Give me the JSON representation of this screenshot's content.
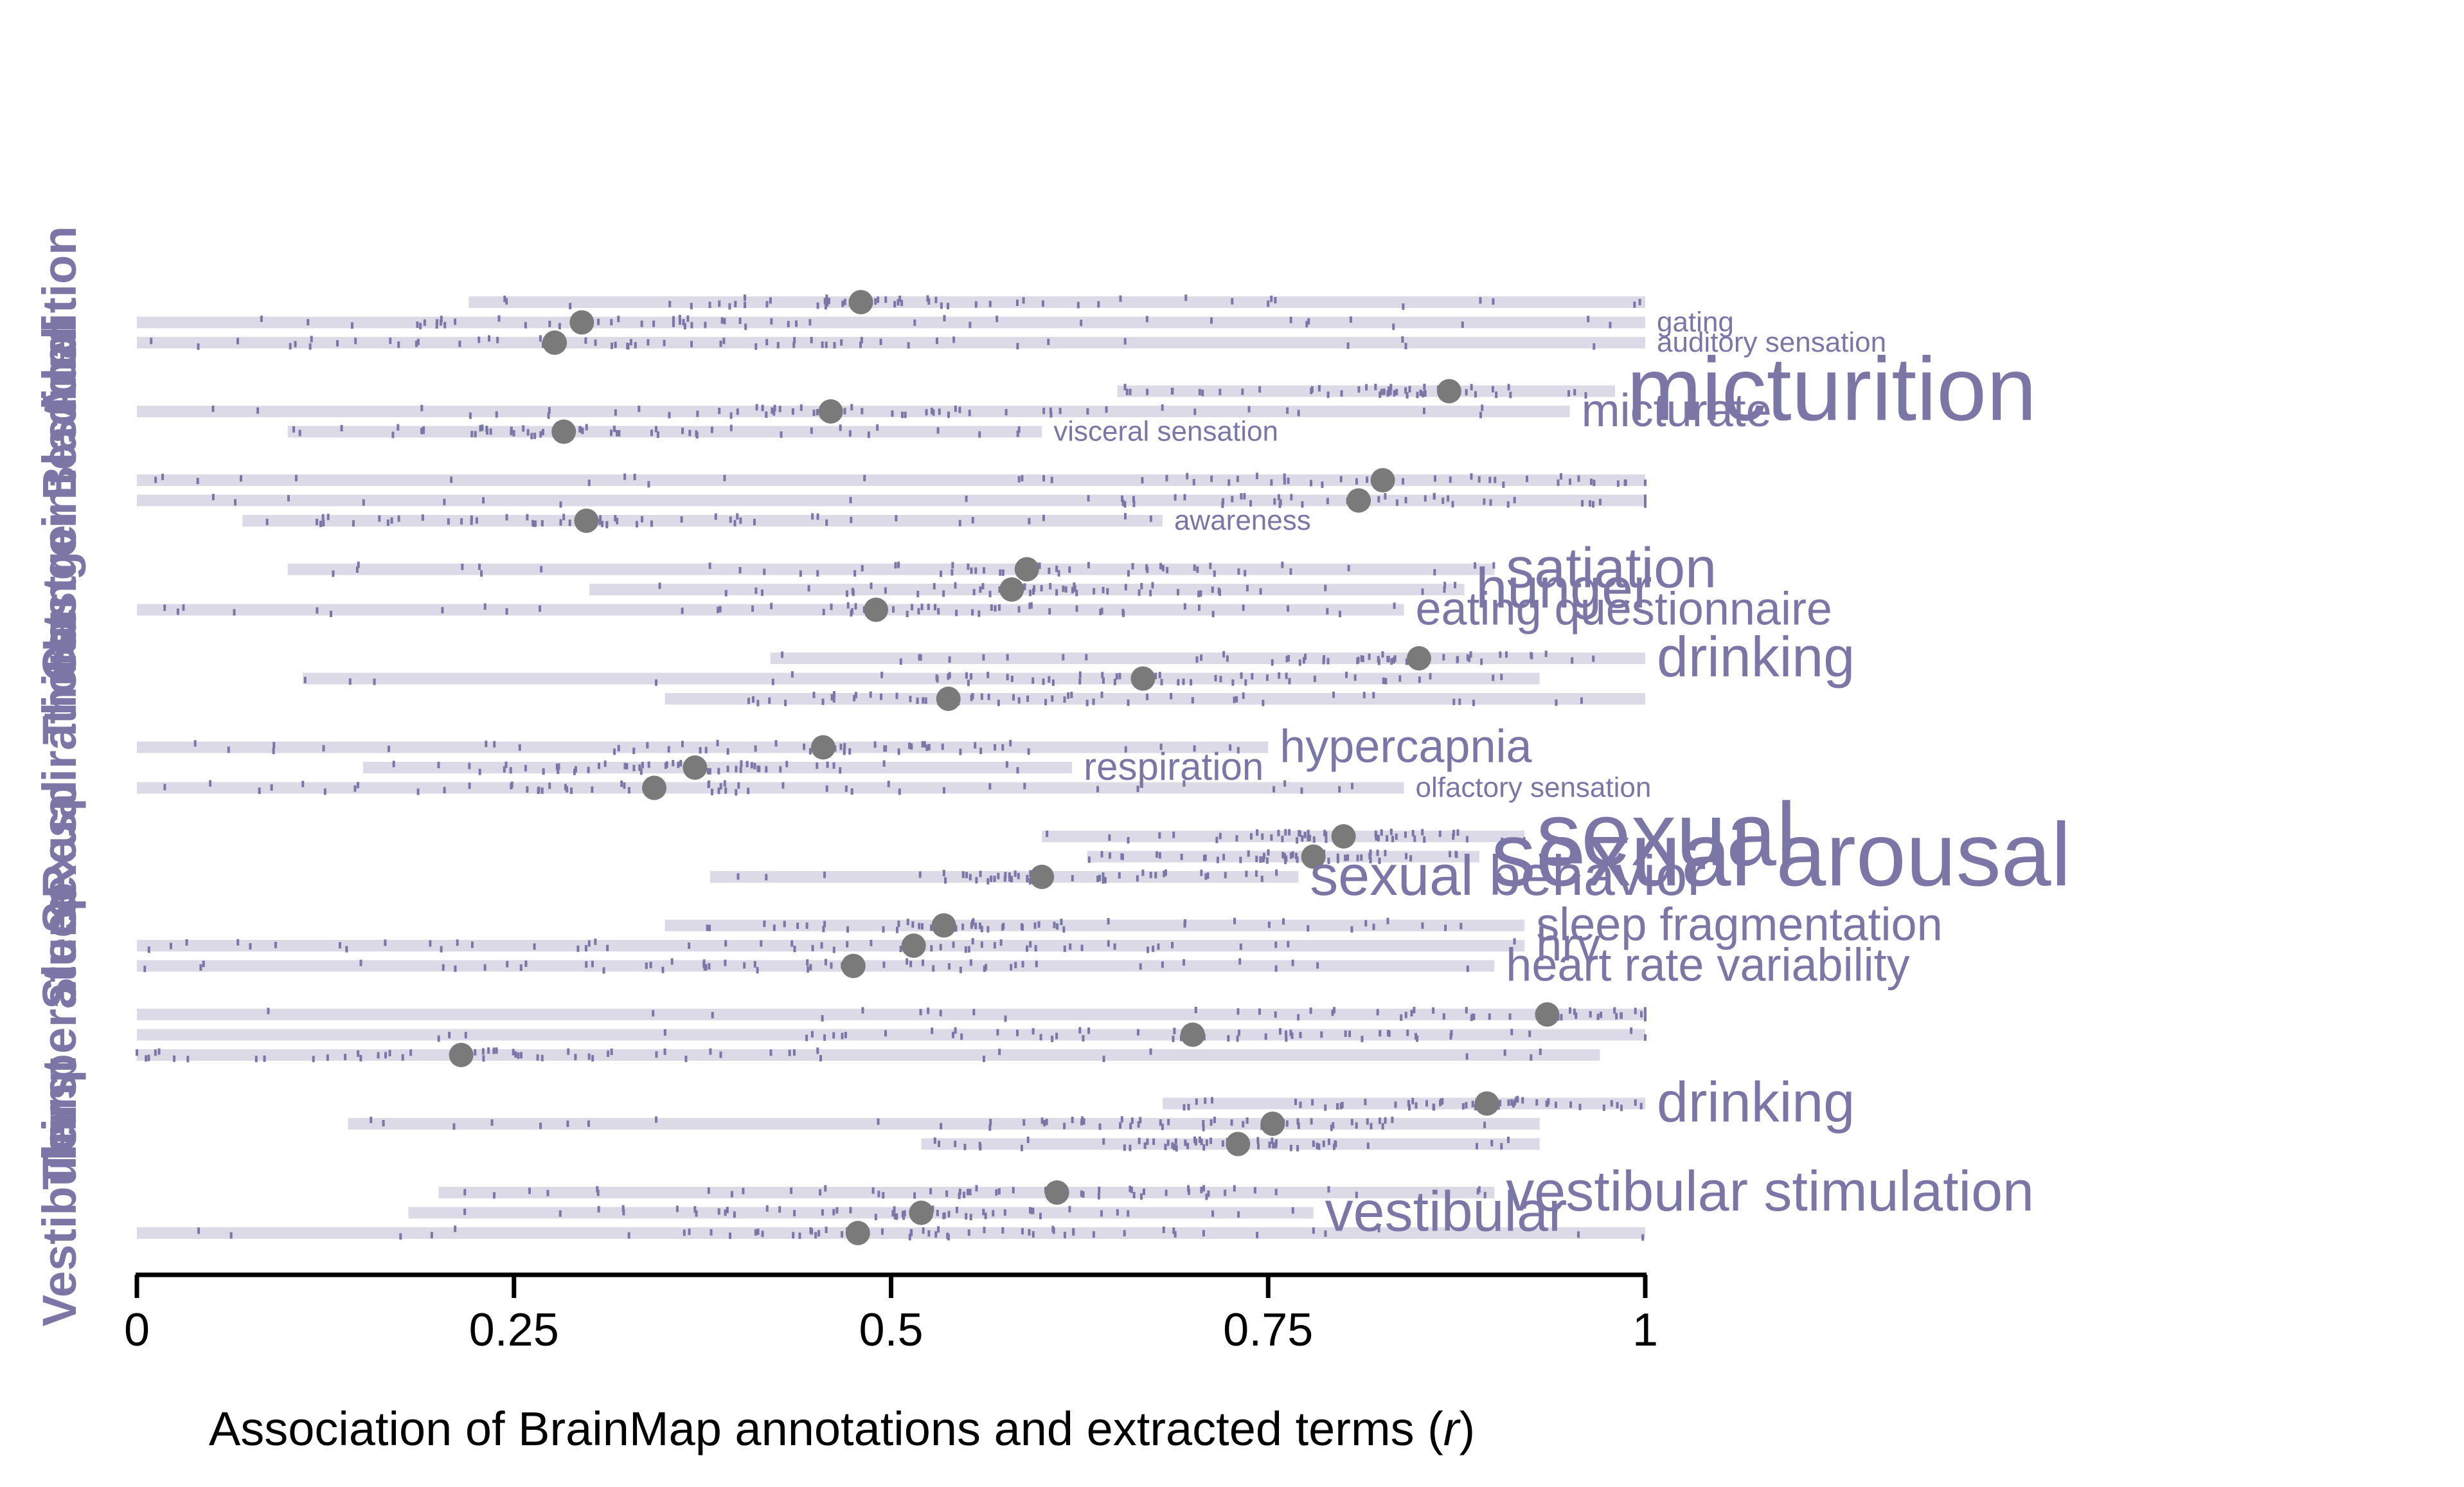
{
  "colors": {
    "accent": "#7B76A6",
    "dot": "#7A7A7A",
    "band": "#DCDAE6",
    "axis": "#000000"
  },
  "chart_data": {
    "type": "scatter",
    "title": "",
    "xlabel_prefix": "Association of BrainMap annotations and extracted terms (",
    "xlabel_var": "r",
    "xlabel_suffix": ")",
    "ylabel": "",
    "xlim": [
      0,
      1
    ],
    "xticks": [
      0,
      0.25,
      0.5,
      0.75,
      1
    ],
    "xtick_labels": [
      "0",
      "0.25",
      "0.5",
      "0.75",
      "1"
    ],
    "groups": [
      {
        "name": "Audition",
        "rows": [
          {
            "lo": 0.22,
            "hi": 1.0,
            "median": 0.48,
            "term": "",
            "size": 0
          },
          {
            "lo": 0.0,
            "hi": 1.0,
            "median": 0.295,
            "term": "gating",
            "size": 1
          },
          {
            "lo": 0.0,
            "hi": 1.0,
            "median": 0.277,
            "term": "auditory sensation",
            "size": 1
          }
        ]
      },
      {
        "name": "Bladder",
        "rows": [
          {
            "lo": 0.65,
            "hi": 0.98,
            "median": 0.87,
            "term": "micturition",
            "size": 5
          },
          {
            "lo": 0.0,
            "hi": 0.95,
            "median": 0.46,
            "term": "micturate",
            "size": 3
          },
          {
            "lo": 0.1,
            "hi": 0.6,
            "median": 0.283,
            "term": "visceral sensation",
            "size": 1
          }
        ]
      },
      {
        "name": "Gastrointestinal",
        "rows": [
          {
            "lo": 0.0,
            "hi": 1.0,
            "median": 0.826,
            "term": "",
            "size": 0
          },
          {
            "lo": 0.0,
            "hi": 1.0,
            "median": 0.81,
            "term": "",
            "size": 0
          },
          {
            "lo": 0.07,
            "hi": 0.68,
            "median": 0.298,
            "term": "awareness",
            "size": 1
          }
        ]
      },
      {
        "name": "Hunger",
        "rows": [
          {
            "lo": 0.1,
            "hi": 0.9,
            "median": 0.59,
            "term": "satiation",
            "size": 4
          },
          {
            "lo": 0.3,
            "hi": 0.88,
            "median": 0.58,
            "term": "hunger",
            "size": 4
          },
          {
            "lo": 0.0,
            "hi": 0.84,
            "median": 0.49,
            "term": "eating questionnaire",
            "size": 3
          }
        ]
      },
      {
        "name": "Thirst",
        "rows": [
          {
            "lo": 0.42,
            "hi": 1.0,
            "median": 0.85,
            "term": "drinking",
            "size": 4
          },
          {
            "lo": 0.11,
            "hi": 0.93,
            "median": 0.667,
            "term": "",
            "size": 0
          },
          {
            "lo": 0.35,
            "hi": 1.0,
            "median": 0.538,
            "term": "",
            "size": 0
          }
        ]
      },
      {
        "name": "Respiration",
        "rows": [
          {
            "lo": 0.0,
            "hi": 0.75,
            "median": 0.455,
            "term": "hypercapnia",
            "size": 3
          },
          {
            "lo": 0.15,
            "hi": 0.62,
            "median": 0.37,
            "term": "respiration",
            "size": 2
          },
          {
            "lo": 0.0,
            "hi": 0.84,
            "median": 0.343,
            "term": "olfactory sensation",
            "size": 1
          }
        ]
      },
      {
        "name": "Sexual",
        "rows": [
          {
            "lo": 0.6,
            "hi": 0.92,
            "median": 0.8,
            "term": "sexual",
            "size": 5
          },
          {
            "lo": 0.63,
            "hi": 0.89,
            "median": 0.78,
            "term": "sexual arousal",
            "size": 5
          },
          {
            "lo": 0.38,
            "hi": 0.77,
            "median": 0.6,
            "term": "sexual behavior",
            "size": 4
          }
        ]
      },
      {
        "name": "Sleep",
        "rows": [
          {
            "lo": 0.35,
            "hi": 0.92,
            "median": 0.535,
            "term": "sleep fragmentation",
            "size": 3
          },
          {
            "lo": 0.0,
            "hi": 0.92,
            "median": 0.515,
            "term": "hrv",
            "size": 3
          },
          {
            "lo": 0.0,
            "hi": 0.9,
            "median": 0.475,
            "term": "heart rate variability",
            "size": 3
          }
        ]
      },
      {
        "name": "Temperature",
        "rows": [
          {
            "lo": 0.0,
            "hi": 1.0,
            "median": 0.935,
            "term": "",
            "size": 0
          },
          {
            "lo": 0.0,
            "hi": 1.0,
            "median": 0.7,
            "term": "",
            "size": 0
          },
          {
            "lo": 0.0,
            "hi": 0.97,
            "median": 0.215,
            "term": "",
            "size": 0
          }
        ]
      },
      {
        "name": "Thirst",
        "rows": [
          {
            "lo": 0.68,
            "hi": 1.0,
            "median": 0.895,
            "term": "drinking",
            "size": 4
          },
          {
            "lo": 0.14,
            "hi": 0.93,
            "median": 0.753,
            "term": "",
            "size": 0
          },
          {
            "lo": 0.52,
            "hi": 0.93,
            "median": 0.73,
            "term": "",
            "size": 0
          }
        ]
      },
      {
        "name": "Vestibular",
        "rows": [
          {
            "lo": 0.2,
            "hi": 0.9,
            "median": 0.61,
            "term": "vestibular stimulation",
            "size": 4
          },
          {
            "lo": 0.18,
            "hi": 0.78,
            "median": 0.52,
            "term": "vestibular",
            "size": 4
          },
          {
            "lo": 0.0,
            "hi": 1.0,
            "median": 0.478,
            "term": "",
            "size": 0
          }
        ]
      }
    ]
  }
}
